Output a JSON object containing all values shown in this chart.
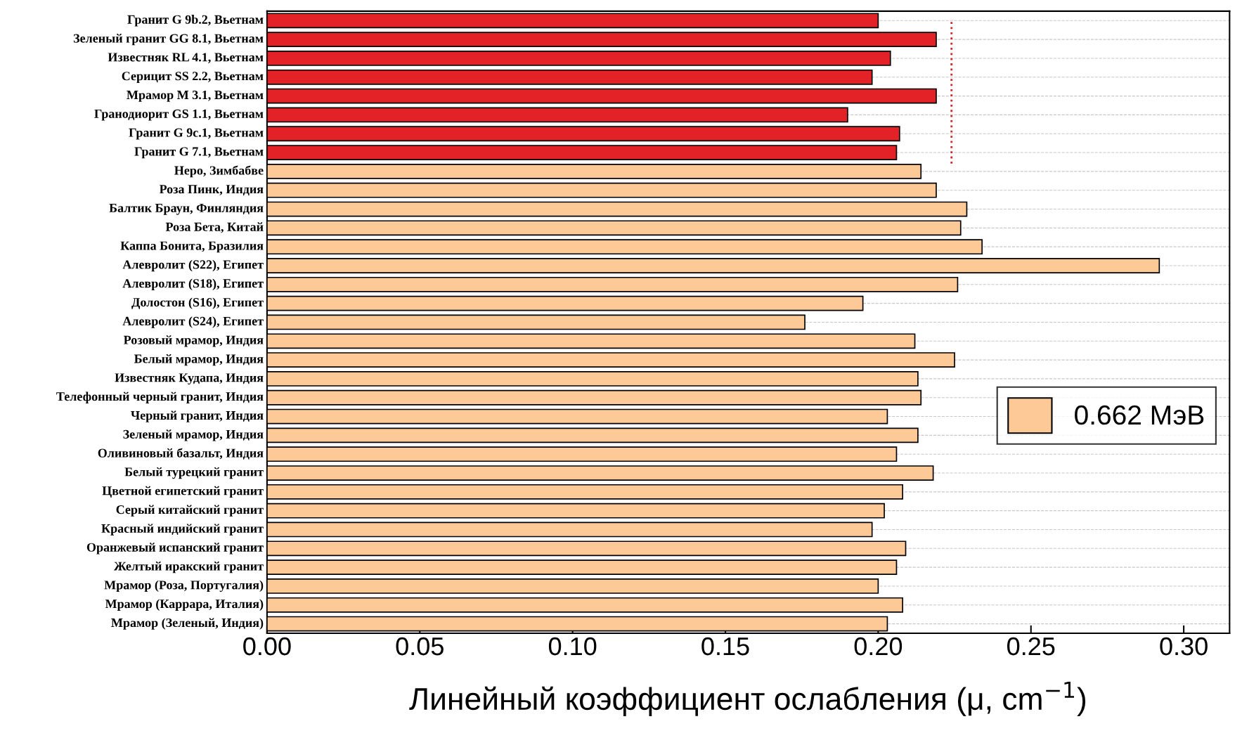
{
  "chart_data": {
    "type": "bar",
    "orientation": "horizontal",
    "categories": [
      "Гранит G 9b.2, Вьетнам",
      "Зеленый гранит GG 8.1, Вьетнам",
      "Известняк RL 4.1, Вьетнам",
      "Серицит SS 2.2, Вьетнам",
      "Мрамор M 3.1, Вьетнам",
      "Гранодиорит GS 1.1, Вьетнам",
      "Гранит G 9c.1, Вьетнам",
      "Гранит G 7.1, Вьетнам",
      "Неро, Зимбабве",
      "Роза Пинк, Индия",
      "Балтик Браун, Финляндия",
      "Роза Бета, Китай",
      "Каппа Бонита, Бразилия",
      "Алевролит (S22), Египет",
      "Алевролит (S18), Египет",
      "Долостон (S16), Египет",
      "Алевролит (S24), Египет",
      "Розовый мрамор, Индия",
      "Белый мрамор, Индия",
      "Известняк Кудапа, Индия",
      "Телефонный черный гранит, Индия",
      "Черный гранит, Индия",
      "Зеленый мрамор, Индия",
      "Оливиновый базальт, Индия",
      "Белый турецкий гранит",
      "Цветной египетский гранит",
      "Серый китайский гранит",
      "Красный индийский гранит",
      "Оранжевый испанский гранит",
      "Желтый иракский гранит",
      "Мрамор (Роза, Португалия)",
      "Мрамор (Каррара, Италия)",
      "Мрамор (Зеленый, Индия)"
    ],
    "series": [
      {
        "color": "#e32227",
        "values": [
          0.2,
          0.219,
          0.204,
          0.198,
          0.219,
          0.19,
          0.207,
          0.206,
          null,
          null,
          null,
          null,
          null,
          null,
          null,
          null,
          null,
          null,
          null,
          null,
          null,
          null,
          null,
          null,
          null,
          null,
          null,
          null,
          null,
          null,
          null,
          null,
          null
        ]
      },
      {
        "name": "0.662 МэВ",
        "color": "#fdc997",
        "values": [
          null,
          null,
          null,
          null,
          null,
          null,
          null,
          null,
          0.214,
          0.219,
          0.229,
          0.227,
          0.234,
          0.292,
          0.226,
          0.195,
          0.176,
          0.212,
          0.225,
          0.213,
          0.214,
          0.203,
          0.213,
          0.206,
          0.218,
          0.208,
          0.202,
          0.198,
          0.209,
          0.206,
          0.2,
          0.208,
          0.203
        ]
      }
    ],
    "xlabel": "Линейный коэффициент ослабления (μ, cm$^{−1}$)",
    "xlim": [
      0,
      0.315
    ],
    "xticks": [
      {
        "value": 0,
        "label": "0.00"
      },
      {
        "value": 0.05,
        "label": "0.05"
      },
      {
        "value": 0.1,
        "label": "0.10"
      },
      {
        "value": 0.15,
        "label": "0.15"
      },
      {
        "value": 0.2,
        "label": "0.20"
      },
      {
        "value": 0.25,
        "label": "0.25"
      },
      {
        "value": 0.3,
        "label": "0.30"
      }
    ],
    "ref_lines": [
      {
        "axis": "x",
        "value": 0.224,
        "color": "#d62728",
        "line_style": "dotted"
      }
    ],
    "grid": "y",
    "legend": "right"
  }
}
